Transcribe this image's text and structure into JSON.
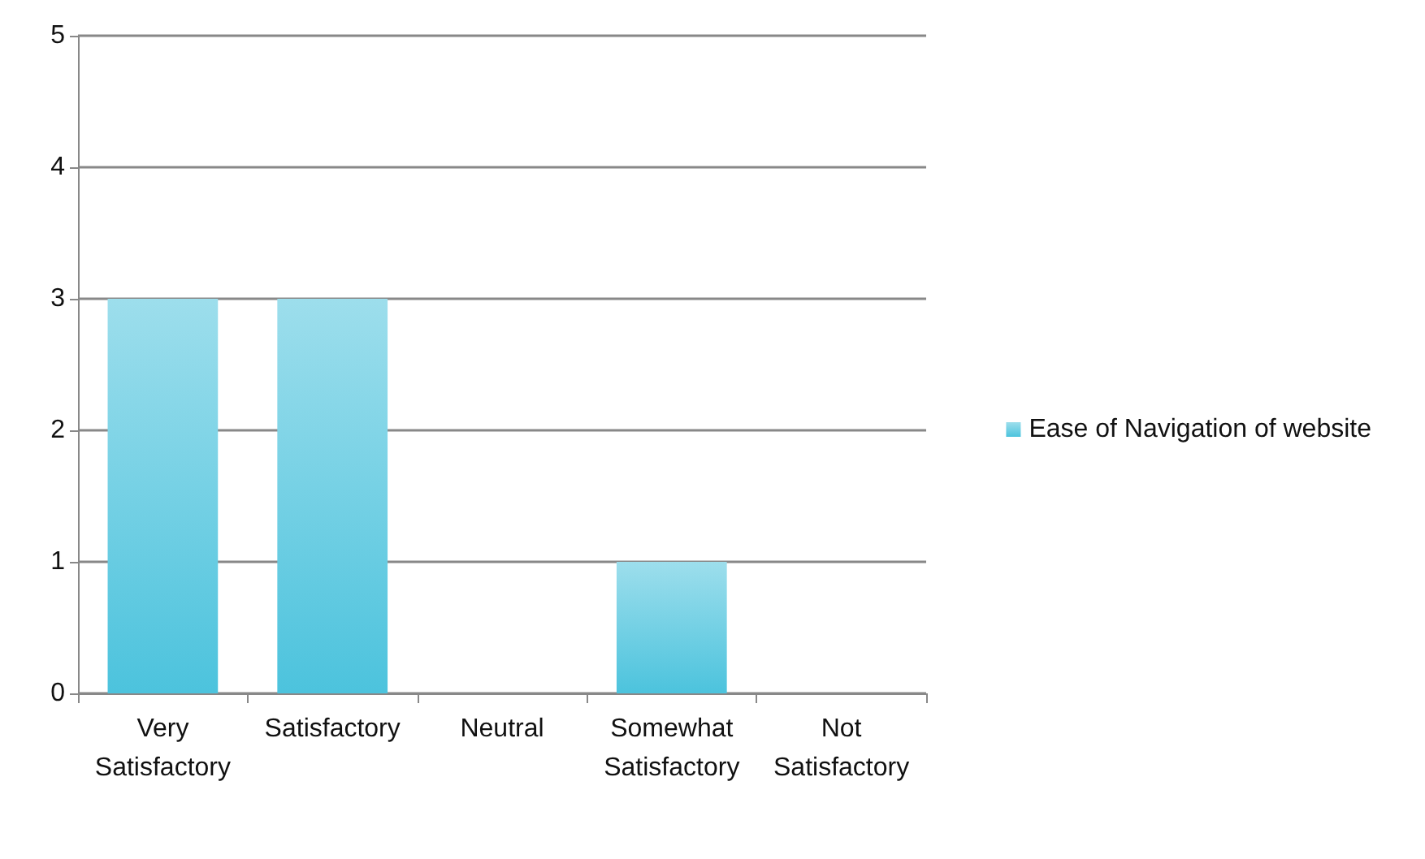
{
  "chart_data": {
    "type": "bar",
    "categories": [
      "Very Satisfactory",
      "Satisfactory",
      "Neutral",
      "Somewhat Satisfactory",
      "Not Satisfactory"
    ],
    "series": [
      {
        "name": "Ease of Navigation of website",
        "color": "#4cc3dd",
        "values": [
          3,
          3,
          0,
          1,
          0
        ]
      }
    ],
    "ylim": [
      0,
      5
    ],
    "yticks": [
      0,
      1,
      2,
      3,
      4,
      5
    ],
    "grid": "y",
    "legend": "right"
  }
}
